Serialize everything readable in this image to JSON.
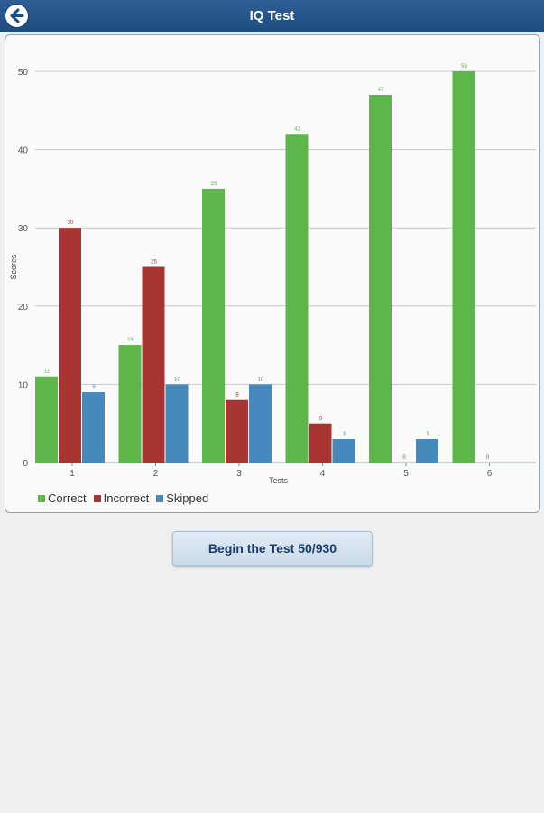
{
  "header": {
    "title": "IQ Test",
    "back_icon": "back-arrow-icon"
  },
  "chart_data": {
    "type": "bar",
    "title": "",
    "xlabel": "Tests",
    "ylabel": "Scores",
    "categories": [
      "1",
      "2",
      "3",
      "4",
      "5",
      "6"
    ],
    "ylim": [
      0,
      50
    ],
    "yticks": [
      0,
      10,
      20,
      30,
      40,
      50
    ],
    "grid": true,
    "legend_position": "bottom-left",
    "series": [
      {
        "name": "Correct",
        "color": "#5db64a",
        "values": [
          11,
          15,
          35,
          42,
          47,
          50
        ]
      },
      {
        "name": "Incorrect",
        "color": "#a93533",
        "values": [
          30,
          25,
          8,
          5,
          0,
          0
        ]
      },
      {
        "name": "Skipped",
        "color": "#4589bd",
        "values": [
          9,
          10,
          10,
          3,
          3,
          null
        ]
      }
    ]
  },
  "legend": {
    "correct": "Correct",
    "incorrect": "Incorrect",
    "skipped": "Skipped"
  },
  "button": {
    "label": "Begin the Test 50/930"
  }
}
